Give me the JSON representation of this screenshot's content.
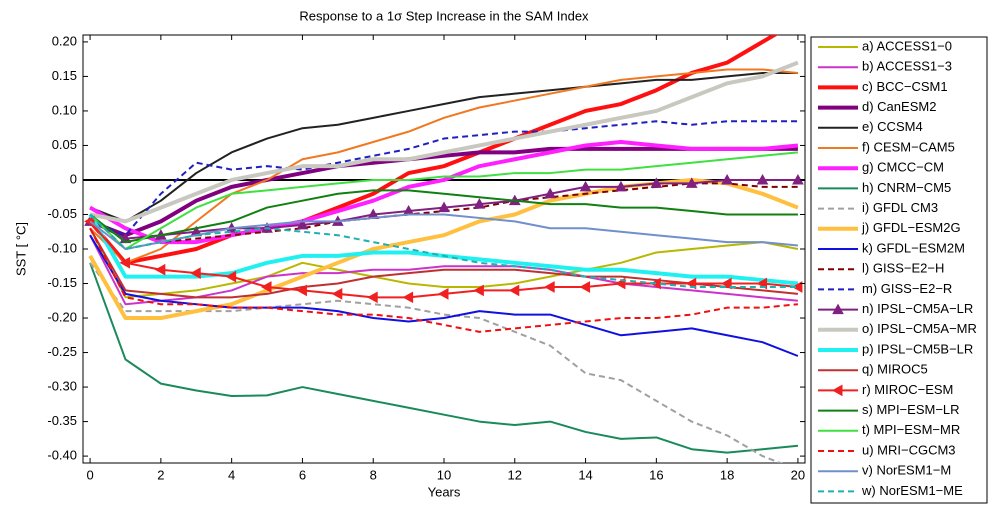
{
  "chart_data": {
    "type": "line",
    "title": "Response to a 1σ Step Increase in the SAM Index",
    "x_label": "Years",
    "y_label": "SST  [ °C]",
    "x": [
      0,
      1,
      2,
      3,
      4,
      5,
      6,
      7,
      8,
      9,
      10,
      11,
      12,
      13,
      14,
      15,
      16,
      17,
      18,
      19,
      20
    ],
    "xlim": [
      -0.2,
      20.2
    ],
    "xticks": [
      0,
      2,
      4,
      6,
      8,
      10,
      12,
      14,
      16,
      18,
      20
    ],
    "ylim": [
      -0.41,
      0.21
    ],
    "yticks": [
      {
        "value": 0.2,
        "label": "0.20"
      },
      0.15,
      {
        "value": 0.1,
        "label": "0.10"
      },
      0.05,
      0,
      -0.05,
      {
        "value": -0.1,
        "label": "-0.10"
      },
      -0.15,
      {
        "value": -0.2,
        "label": "-0.20"
      },
      -0.25,
      {
        "value": -0.3,
        "label": "-0.30"
      },
      -0.35,
      {
        "value": -0.4,
        "label": "-0.40"
      }
    ],
    "zero_line": true,
    "legend": "outside-right",
    "series": [
      {
        "name": "a) ACCESS1−0",
        "color": "#b8b800",
        "linewidth": 2,
        "values": [
          -0.07,
          -0.17,
          -0.165,
          -0.16,
          -0.15,
          -0.14,
          -0.12,
          -0.13,
          -0.14,
          -0.15,
          -0.155,
          -0.155,
          -0.15,
          -0.14,
          -0.13,
          -0.12,
          -0.105,
          -0.1,
          -0.095,
          -0.09,
          -0.1
        ]
      },
      {
        "name": "b) ACCESS1−3",
        "color": "#cc33cc",
        "linewidth": 2,
        "values": [
          -0.08,
          -0.18,
          -0.175,
          -0.17,
          -0.16,
          -0.14,
          -0.135,
          -0.135,
          -0.13,
          -0.13,
          -0.125,
          -0.125,
          -0.125,
          -0.13,
          -0.14,
          -0.15,
          -0.155,
          -0.16,
          -0.165,
          -0.17,
          -0.175
        ]
      },
      {
        "name": "c) BCC−CSM1",
        "color": "#ff1010",
        "linewidth": 4,
        "values": [
          -0.06,
          -0.12,
          -0.11,
          -0.1,
          -0.08,
          -0.07,
          -0.06,
          -0.04,
          -0.02,
          0.01,
          0.02,
          0.04,
          0.06,
          0.08,
          0.1,
          0.11,
          0.13,
          0.155,
          0.17,
          0.2,
          0.23
        ]
      },
      {
        "name": "d) CanESM2",
        "color": "#800080",
        "linewidth": 4,
        "values": [
          -0.06,
          -0.08,
          -0.06,
          -0.03,
          -0.01,
          0.0,
          0.01,
          0.02,
          0.025,
          0.03,
          0.035,
          0.04,
          0.04,
          0.045,
          0.045,
          0.045,
          0.045,
          0.045,
          0.045,
          0.045,
          0.045
        ]
      },
      {
        "name": "e) CCSM4",
        "color": "#222222",
        "linewidth": 2,
        "values": [
          -0.04,
          -0.06,
          -0.03,
          0.01,
          0.04,
          0.06,
          0.075,
          0.08,
          0.09,
          0.1,
          0.11,
          0.12,
          0.125,
          0.13,
          0.135,
          0.14,
          0.145,
          0.145,
          0.15,
          0.155,
          0.155
        ]
      },
      {
        "name": "f) CESM−CAM5",
        "color": "#f07820",
        "linewidth": 2,
        "values": [
          -0.07,
          -0.12,
          -0.1,
          -0.06,
          -0.02,
          0.0,
          0.03,
          0.04,
          0.055,
          0.07,
          0.09,
          0.105,
          0.115,
          0.125,
          0.135,
          0.145,
          0.15,
          0.155,
          0.16,
          0.16,
          0.155
        ]
      },
      {
        "name": "g) CMCC−CM",
        "color": "#ff20ff",
        "linewidth": 4,
        "values": [
          -0.04,
          -0.07,
          -0.09,
          -0.09,
          -0.08,
          -0.07,
          -0.06,
          -0.045,
          -0.03,
          -0.01,
          0.0,
          0.02,
          0.03,
          0.04,
          0.05,
          0.055,
          0.05,
          0.045,
          0.045,
          0.045,
          0.05
        ]
      },
      {
        "name": "h) CNRM−CM5",
        "color": "#1a8a5a",
        "linewidth": 2,
        "values": [
          -0.12,
          -0.26,
          -0.295,
          -0.305,
          -0.313,
          -0.312,
          -0.3,
          -0.31,
          -0.32,
          -0.33,
          -0.34,
          -0.35,
          -0.355,
          -0.35,
          -0.365,
          -0.375,
          -0.373,
          -0.39,
          -0.395,
          -0.39,
          -0.385
        ]
      },
      {
        "name": "i) GFDL CM3",
        "color": "#a0a0a0",
        "linewidth": 2,
        "linestyle": "dashed",
        "values": [
          -0.12,
          -0.19,
          -0.19,
          -0.19,
          -0.19,
          -0.185,
          -0.18,
          -0.175,
          -0.18,
          -0.185,
          -0.195,
          -0.2,
          -0.22,
          -0.24,
          -0.28,
          -0.29,
          -0.32,
          -0.35,
          -0.37,
          -0.4,
          -0.42
        ]
      },
      {
        "name": "j) GFDL−ESM2G",
        "color": "#ffc040",
        "linewidth": 4,
        "values": [
          -0.11,
          -0.2,
          -0.2,
          -0.19,
          -0.18,
          -0.16,
          -0.14,
          -0.12,
          -0.1,
          -0.09,
          -0.08,
          -0.06,
          -0.05,
          -0.03,
          -0.02,
          -0.01,
          -0.005,
          0.0,
          -0.005,
          -0.02,
          -0.04
        ]
      },
      {
        "name": "k) GFDL−ESM2M",
        "color": "#1010e0",
        "linewidth": 2,
        "values": [
          -0.08,
          -0.165,
          -0.175,
          -0.18,
          -0.185,
          -0.185,
          -0.185,
          -0.19,
          -0.2,
          -0.205,
          -0.2,
          -0.19,
          -0.195,
          -0.195,
          -0.21,
          -0.225,
          -0.22,
          -0.215,
          -0.225,
          -0.235,
          -0.255
        ]
      },
      {
        "name": "l) GISS−E2−H",
        "color": "#800000",
        "linewidth": 2,
        "linestyle": "dashed",
        "values": [
          -0.05,
          -0.1,
          -0.09,
          -0.085,
          -0.08,
          -0.075,
          -0.07,
          -0.06,
          -0.055,
          -0.05,
          -0.045,
          -0.04,
          -0.03,
          -0.025,
          -0.02,
          -0.015,
          -0.01,
          -0.005,
          -0.005,
          -0.01,
          -0.01
        ]
      },
      {
        "name": "m) GISS−E2−R",
        "color": "#2020c0",
        "linewidth": 2,
        "linestyle": "dashed",
        "values": [
          -0.06,
          -0.08,
          -0.02,
          0.025,
          0.015,
          0.02,
          0.015,
          0.025,
          0.035,
          0.045,
          0.06,
          0.065,
          0.07,
          0.07,
          0.075,
          0.08,
          0.085,
          0.08,
          0.085,
          0.085,
          0.085
        ]
      },
      {
        "name": "n) IPSL−CM5A−LR",
        "color": "#802080",
        "linewidth": 2,
        "marker": "triangle",
        "values": [
          -0.06,
          -0.085,
          -0.08,
          -0.075,
          -0.07,
          -0.07,
          -0.065,
          -0.06,
          -0.05,
          -0.045,
          -0.04,
          -0.035,
          -0.03,
          -0.02,
          -0.01,
          -0.01,
          -0.005,
          -0.005,
          0.0,
          0.0,
          0.0
        ]
      },
      {
        "name": "o) IPSL−CM5A−MR",
        "color": "#c8c8c0",
        "linewidth": 4,
        "values": [
          -0.05,
          -0.06,
          -0.04,
          -0.02,
          0.0,
          0.01,
          0.02,
          0.02,
          0.03,
          0.03,
          0.04,
          0.05,
          0.06,
          0.07,
          0.08,
          0.09,
          0.1,
          0.12,
          0.14,
          0.15,
          0.17
        ]
      },
      {
        "name": "p) IPSL−CM5B−LR",
        "color": "#20f0f0",
        "linewidth": 4,
        "values": [
          -0.05,
          -0.14,
          -0.14,
          -0.14,
          -0.135,
          -0.12,
          -0.11,
          -0.11,
          -0.105,
          -0.105,
          -0.11,
          -0.115,
          -0.12,
          -0.125,
          -0.13,
          -0.13,
          -0.135,
          -0.14,
          -0.14,
          -0.145,
          -0.15
        ]
      },
      {
        "name": "q) MIROC5",
        "color": "#c03030",
        "linewidth": 2,
        "values": [
          -0.07,
          -0.16,
          -0.165,
          -0.17,
          -0.17,
          -0.165,
          -0.155,
          -0.15,
          -0.14,
          -0.135,
          -0.13,
          -0.13,
          -0.13,
          -0.135,
          -0.14,
          -0.14,
          -0.145,
          -0.15,
          -0.155,
          -0.16,
          -0.165
        ]
      },
      {
        "name": "r) MIROC−ESM",
        "color": "#f02020",
        "linewidth": 2,
        "marker": "triangle-left",
        "values": [
          -0.06,
          -0.12,
          -0.13,
          -0.135,
          -0.14,
          -0.155,
          -0.16,
          -0.165,
          -0.17,
          -0.17,
          -0.165,
          -0.16,
          -0.16,
          -0.155,
          -0.155,
          -0.15,
          -0.15,
          -0.15,
          -0.15,
          -0.15,
          -0.155
        ]
      },
      {
        "name": "s) MPI−ESM−LR",
        "color": "#108010",
        "linewidth": 2,
        "values": [
          -0.05,
          -0.09,
          -0.08,
          -0.07,
          -0.06,
          -0.04,
          -0.03,
          -0.02,
          -0.015,
          -0.015,
          -0.02,
          -0.025,
          -0.03,
          -0.035,
          -0.035,
          -0.04,
          -0.04,
          -0.045,
          -0.05,
          -0.05,
          -0.05
        ]
      },
      {
        "name": "t) MPI−ESM−MR",
        "color": "#40e040",
        "linewidth": 2,
        "values": [
          -0.05,
          -0.1,
          -0.07,
          -0.04,
          -0.02,
          -0.015,
          -0.01,
          -0.005,
          0.0,
          0.0,
          0.005,
          0.005,
          0.01,
          0.01,
          0.015,
          0.015,
          0.02,
          0.025,
          0.03,
          0.035,
          0.04
        ]
      },
      {
        "name": "u) MRI−CGCM3",
        "color": "#f01010",
        "linewidth": 2,
        "linestyle": "dashed",
        "values": [
          -0.07,
          -0.17,
          -0.18,
          -0.18,
          -0.185,
          -0.185,
          -0.19,
          -0.195,
          -0.195,
          -0.2,
          -0.21,
          -0.22,
          -0.215,
          -0.21,
          -0.205,
          -0.2,
          -0.2,
          -0.195,
          -0.185,
          -0.185,
          -0.18
        ]
      },
      {
        "name": "v) NorESM1−M",
        "color": "#7090cc",
        "linewidth": 2,
        "values": [
          -0.06,
          -0.1,
          -0.09,
          -0.08,
          -0.07,
          -0.065,
          -0.06,
          -0.06,
          -0.055,
          -0.05,
          -0.05,
          -0.055,
          -0.06,
          -0.07,
          -0.07,
          -0.075,
          -0.08,
          -0.085,
          -0.09,
          -0.09,
          -0.095
        ]
      },
      {
        "name": "w) NorESM1−ME",
        "color": "#20b0b0",
        "linewidth": 2,
        "linestyle": "dashed",
        "values": [
          -0.05,
          -0.1,
          -0.09,
          -0.08,
          -0.075,
          -0.07,
          -0.075,
          -0.08,
          -0.09,
          -0.1,
          -0.11,
          -0.12,
          -0.125,
          -0.13,
          -0.14,
          -0.145,
          -0.15,
          -0.155,
          -0.155,
          -0.155,
          -0.155
        ]
      }
    ]
  }
}
